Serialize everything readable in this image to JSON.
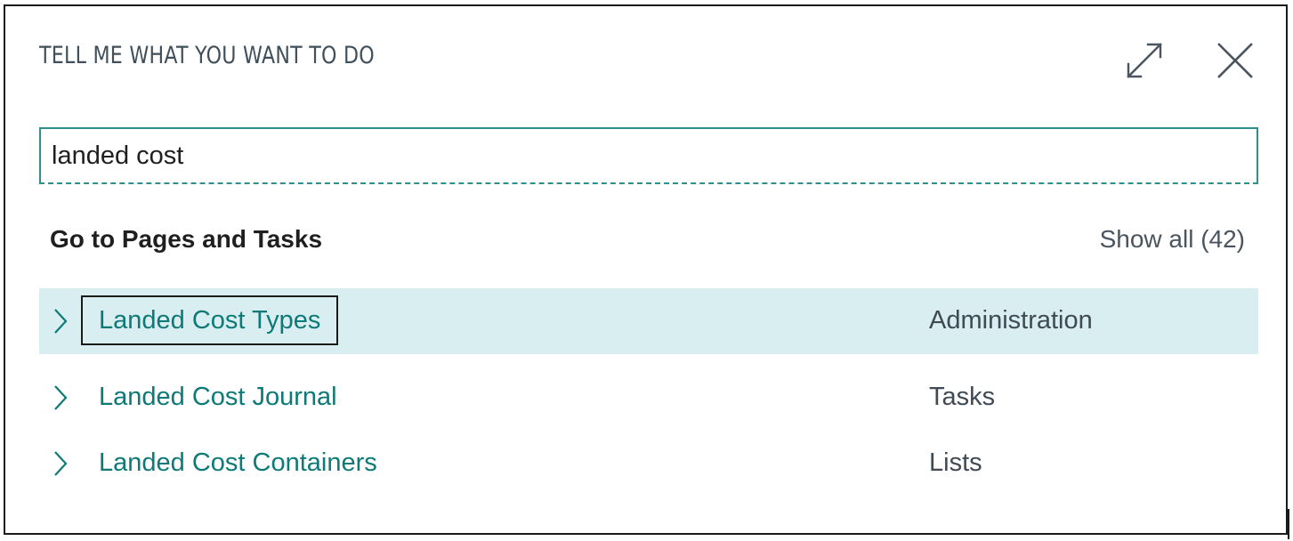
{
  "dialog": {
    "title": "TELL ME WHAT YOU WANT TO DO",
    "expand_icon": "expand-icon",
    "close_icon": "close-icon"
  },
  "search": {
    "value": "landed cost",
    "placeholder": ""
  },
  "section": {
    "title": "Go to Pages and Tasks",
    "show_all": "Show all (42)"
  },
  "results": [
    {
      "name": "Landed Cost Types",
      "category": "Administration",
      "selected": true
    },
    {
      "name": "Landed Cost Journal",
      "category": "Tasks",
      "selected": false
    },
    {
      "name": "Landed Cost Containers",
      "category": "Lists",
      "selected": false
    }
  ],
  "colors": {
    "accent": "#0d7a78",
    "selected_row": "#d9eef0",
    "border": "#2f8f8f"
  }
}
